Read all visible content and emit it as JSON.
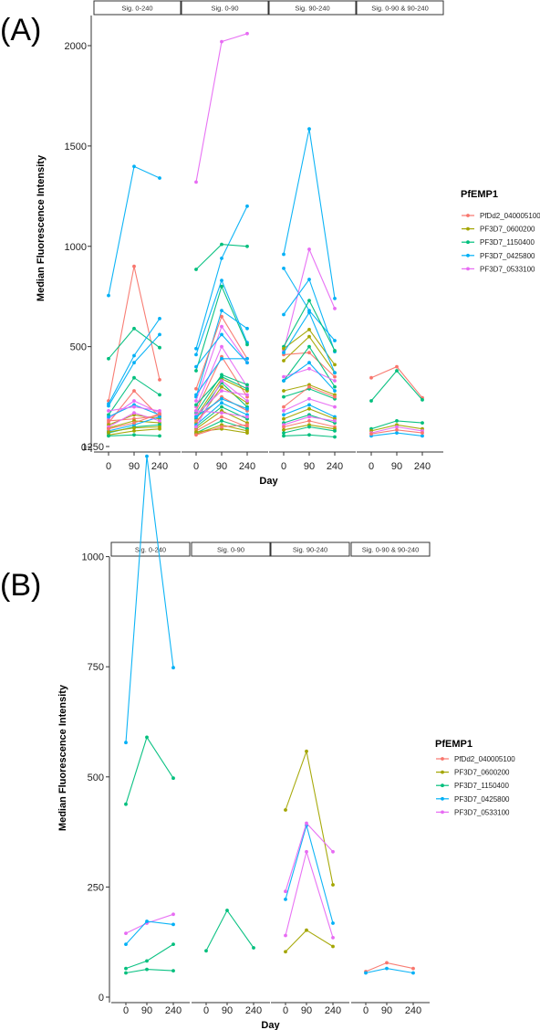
{
  "panels": [
    {
      "label": "(A)"
    },
    {
      "label": "(B)"
    }
  ],
  "chart_data": [
    {
      "type": "line",
      "panel_label": "(A)",
      "facets": [
        "Sig. 0-240",
        "Sig. 0-90",
        "Sig. 90-240",
        "Sig. 0-90 & 90-240"
      ],
      "x": [
        0,
        90,
        240
      ],
      "xticks": [
        "0",
        "90",
        "240"
      ],
      "xlabel": "Day",
      "ylabel": "Median Fluorescence Intensity",
      "ylim": [
        -30,
        2150
      ],
      "yticks": [
        0,
        500,
        1000,
        1500,
        2000
      ],
      "legend": {
        "title": "PfEMP1",
        "position": "right"
      },
      "series_styles": [
        {
          "name": "PfDd2_040005100",
          "color": "#F8766D"
        },
        {
          "name": "PF3D7_0600200",
          "color": "#A3A500"
        },
        {
          "name": "PF3D7_1150400",
          "color": "#00BF7D"
        },
        {
          "name": "PF3D7_0425800",
          "color": "#00B0F6"
        },
        {
          "name": "PF3D7_0533100",
          "color": "#E76BF3"
        }
      ],
      "lines": [
        {
          "facet": 0,
          "series": 3,
          "values": [
            755,
            1398,
            1340
          ]
        },
        {
          "facet": 0,
          "series": 0,
          "values": [
            230,
            900,
            335
          ]
        },
        {
          "facet": 0,
          "series": 2,
          "values": [
            440,
            590,
            495
          ]
        },
        {
          "facet": 0,
          "series": 3,
          "values": [
            215,
            455,
            640
          ]
        },
        {
          "facet": 0,
          "series": 3,
          "values": [
            205,
            420,
            560
          ]
        },
        {
          "facet": 0,
          "series": 2,
          "values": [
            160,
            345,
            260
          ]
        },
        {
          "facet": 0,
          "series": 4,
          "values": [
            140,
            230,
            170
          ]
        },
        {
          "facet": 0,
          "series": 0,
          "values": [
            120,
            280,
            150
          ]
        },
        {
          "facet": 0,
          "series": 3,
          "values": [
            150,
            210,
            160
          ]
        },
        {
          "facet": 0,
          "series": 1,
          "values": [
            110,
            160,
            140
          ]
        },
        {
          "facet": 0,
          "series": 4,
          "values": [
            180,
            200,
            180
          ]
        },
        {
          "facet": 0,
          "series": 0,
          "values": [
            130,
            140,
            155
          ]
        },
        {
          "facet": 0,
          "series": 1,
          "values": [
            95,
            130,
            120
          ]
        },
        {
          "facet": 0,
          "series": 2,
          "values": [
            70,
            100,
            110
          ]
        },
        {
          "facet": 0,
          "series": 1,
          "values": [
            60,
            80,
            90
          ]
        },
        {
          "facet": 0,
          "series": 2,
          "values": [
            55,
            60,
            55
          ]
        },
        {
          "facet": 0,
          "series": 3,
          "values": [
            80,
            110,
            150
          ]
        },
        {
          "facet": 0,
          "series": 4,
          "values": [
            100,
            170,
            130
          ]
        },
        {
          "facet": 0,
          "series": 1,
          "values": [
            75,
            95,
            100
          ]
        },
        {
          "facet": 0,
          "series": 0,
          "values": [
            90,
            120,
            165
          ]
        },
        {
          "facet": 1,
          "series": 4,
          "values": [
            1320,
            2020,
            2060
          ]
        },
        {
          "facet": 1,
          "series": 3,
          "values": [
            490,
            940,
            1200
          ]
        },
        {
          "facet": 1,
          "series": 2,
          "values": [
            885,
            1010,
            1000
          ]
        },
        {
          "facet": 1,
          "series": 3,
          "values": [
            460,
            830,
            520
          ]
        },
        {
          "facet": 1,
          "series": 2,
          "values": [
            380,
            800,
            510
          ]
        },
        {
          "facet": 1,
          "series": 3,
          "values": [
            250,
            680,
            590
          ]
        },
        {
          "facet": 1,
          "series": 0,
          "values": [
            290,
            650,
            440
          ]
        },
        {
          "facet": 1,
          "series": 4,
          "values": [
            230,
            600,
            420
          ]
        },
        {
          "facet": 1,
          "series": 3,
          "values": [
            400,
            560,
            420
          ]
        },
        {
          "facet": 1,
          "series": 4,
          "values": [
            200,
            500,
            300
          ]
        },
        {
          "facet": 1,
          "series": 0,
          "values": [
            180,
            450,
            250
          ]
        },
        {
          "facet": 1,
          "series": 3,
          "values": [
            260,
            440,
            440
          ]
        },
        {
          "facet": 1,
          "series": 2,
          "values": [
            170,
            360,
            310
          ]
        },
        {
          "facet": 1,
          "series": 1,
          "values": [
            150,
            340,
            280
          ]
        },
        {
          "facet": 1,
          "series": 2,
          "values": [
            140,
            320,
            200
          ]
        },
        {
          "facet": 1,
          "series": 1,
          "values": [
            120,
            300,
            220
          ]
        },
        {
          "facet": 1,
          "series": 4,
          "values": [
            160,
            280,
            260
          ]
        },
        {
          "facet": 1,
          "series": 0,
          "values": [
            130,
            250,
            180
          ]
        },
        {
          "facet": 1,
          "series": 3,
          "values": [
            110,
            220,
            160
          ]
        },
        {
          "facet": 1,
          "series": 2,
          "values": [
            100,
            200,
            140
          ]
        },
        {
          "facet": 1,
          "series": 1,
          "values": [
            90,
            180,
            120
          ]
        },
        {
          "facet": 1,
          "series": 4,
          "values": [
            180,
            170,
            150
          ]
        },
        {
          "facet": 1,
          "series": 0,
          "values": [
            80,
            150,
            100
          ]
        },
        {
          "facet": 1,
          "series": 2,
          "values": [
            70,
            130,
            90
          ]
        },
        {
          "facet": 1,
          "series": 1,
          "values": [
            65,
            110,
            80
          ]
        },
        {
          "facet": 1,
          "series": 3,
          "values": [
            150,
            240,
            190
          ]
        },
        {
          "facet": 1,
          "series": 4,
          "values": [
            100,
            330,
            230
          ]
        },
        {
          "facet": 1,
          "series": 2,
          "values": [
            210,
            350,
            290
          ]
        },
        {
          "facet": 1,
          "series": 1,
          "values": [
            75,
            90,
            70
          ]
        },
        {
          "facet": 1,
          "series": 0,
          "values": [
            60,
            100,
            110
          ]
        },
        {
          "facet": 2,
          "series": 3,
          "values": [
            960,
            1585,
            740
          ]
        },
        {
          "facet": 2,
          "series": 3,
          "values": [
            890,
            680,
            530
          ]
        },
        {
          "facet": 2,
          "series": 4,
          "values": [
            480,
            985,
            690
          ]
        },
        {
          "facet": 2,
          "series": 3,
          "values": [
            660,
            835,
            475
          ]
        },
        {
          "facet": 2,
          "series": 2,
          "values": [
            500,
            730,
            480
          ]
        },
        {
          "facet": 2,
          "series": 1,
          "values": [
            490,
            585,
            410
          ]
        },
        {
          "facet": 2,
          "series": 1,
          "values": [
            430,
            550,
            370
          ]
        },
        {
          "facet": 2,
          "series": 0,
          "values": [
            460,
            470,
            350
          ]
        },
        {
          "facet": 2,
          "series": 3,
          "values": [
            470,
            670,
            370
          ]
        },
        {
          "facet": 2,
          "series": 2,
          "values": [
            330,
            500,
            300
          ]
        },
        {
          "facet": 2,
          "series": 4,
          "values": [
            350,
            390,
            330
          ]
        },
        {
          "facet": 2,
          "series": 1,
          "values": [
            280,
            310,
            260
          ]
        },
        {
          "facet": 2,
          "series": 2,
          "values": [
            250,
            290,
            240
          ]
        },
        {
          "facet": 2,
          "series": 0,
          "values": [
            200,
            300,
            250
          ]
        },
        {
          "facet": 2,
          "series": 4,
          "values": [
            180,
            240,
            200
          ]
        },
        {
          "facet": 2,
          "series": 3,
          "values": [
            160,
            210,
            150
          ]
        },
        {
          "facet": 2,
          "series": 1,
          "values": [
            140,
            190,
            140
          ]
        },
        {
          "facet": 2,
          "series": 2,
          "values": [
            120,
            160,
            120
          ]
        },
        {
          "facet": 2,
          "series": 4,
          "values": [
            110,
            150,
            130
          ]
        },
        {
          "facet": 2,
          "series": 0,
          "values": [
            100,
            130,
            100
          ]
        },
        {
          "facet": 2,
          "series": 1,
          "values": [
            85,
            110,
            90
          ]
        },
        {
          "facet": 2,
          "series": 2,
          "values": [
            70,
            100,
            80
          ]
        },
        {
          "facet": 2,
          "series": 2,
          "values": [
            55,
            60,
            50
          ]
        },
        {
          "facet": 2,
          "series": 3,
          "values": [
            330,
            420,
            280
          ]
        },
        {
          "facet": 3,
          "series": 0,
          "values": [
            345,
            400,
            245
          ]
        },
        {
          "facet": 3,
          "series": 2,
          "values": [
            230,
            380,
            235
          ]
        },
        {
          "facet": 3,
          "series": 2,
          "values": [
            90,
            130,
            120
          ]
        },
        {
          "facet": 3,
          "series": 1,
          "values": [
            80,
            110,
            90
          ]
        },
        {
          "facet": 3,
          "series": 4,
          "values": [
            70,
            100,
            80
          ]
        },
        {
          "facet": 3,
          "series": 3,
          "values": [
            55,
            70,
            55
          ]
        },
        {
          "facet": 3,
          "series": 0,
          "values": [
            65,
            85,
            70
          ]
        }
      ]
    },
    {
      "type": "line",
      "panel_label": "(B)",
      "facets": [
        "Sig. 0-240",
        "Sig. 0-90",
        "Sig. 90-240",
        "Sig. 0-90 & 90-240"
      ],
      "x": [
        0,
        90,
        240
      ],
      "xticks": [
        "0",
        "90",
        "240"
      ],
      "xlabel": "Day",
      "ylabel": "Median Fluorescence Intensity",
      "ylim": [
        -15,
        1300
      ],
      "yticks": [
        0,
        250,
        500,
        750,
        1000,
        1250
      ],
      "legend": {
        "title": "PfEMP1",
        "position": "right"
      },
      "series_styles": [
        {
          "name": "PfDd2_040005100",
          "color": "#F8766D"
        },
        {
          "name": "PF3D7_0600200",
          "color": "#A3A500"
        },
        {
          "name": "PF3D7_1150400",
          "color": "#00BF7D"
        },
        {
          "name": "PF3D7_0425800",
          "color": "#00B0F6"
        },
        {
          "name": "PF3D7_0533100",
          "color": "#E76BF3"
        }
      ],
      "lines": [
        {
          "facet": 0,
          "series": 3,
          "values": [
            578,
            1228,
            748
          ]
        },
        {
          "facet": 0,
          "series": 2,
          "values": [
            438,
            590,
            497
          ]
        },
        {
          "facet": 0,
          "series": 4,
          "values": [
            145,
            168,
            188
          ]
        },
        {
          "facet": 0,
          "series": 3,
          "values": [
            120,
            172,
            165
          ]
        },
        {
          "facet": 0,
          "series": 2,
          "values": [
            65,
            82,
            120
          ]
        },
        {
          "facet": 0,
          "series": 2,
          "values": [
            55,
            63,
            60
          ]
        },
        {
          "facet": 1,
          "series": 2,
          "values": [
            105,
            197,
            112
          ]
        },
        {
          "facet": 2,
          "series": 1,
          "values": [
            425,
            558,
            255
          ]
        },
        {
          "facet": 2,
          "series": 3,
          "values": [
            222,
            390,
            168
          ]
        },
        {
          "facet": 2,
          "series": 4,
          "values": [
            240,
            395,
            330
          ]
        },
        {
          "facet": 2,
          "series": 4,
          "values": [
            140,
            330,
            135
          ]
        },
        {
          "facet": 2,
          "series": 1,
          "values": [
            103,
            152,
            115
          ]
        },
        {
          "facet": 3,
          "series": 0,
          "values": [
            58,
            78,
            65
          ]
        },
        {
          "facet": 3,
          "series": 3,
          "values": [
            55,
            65,
            55
          ]
        }
      ]
    }
  ]
}
